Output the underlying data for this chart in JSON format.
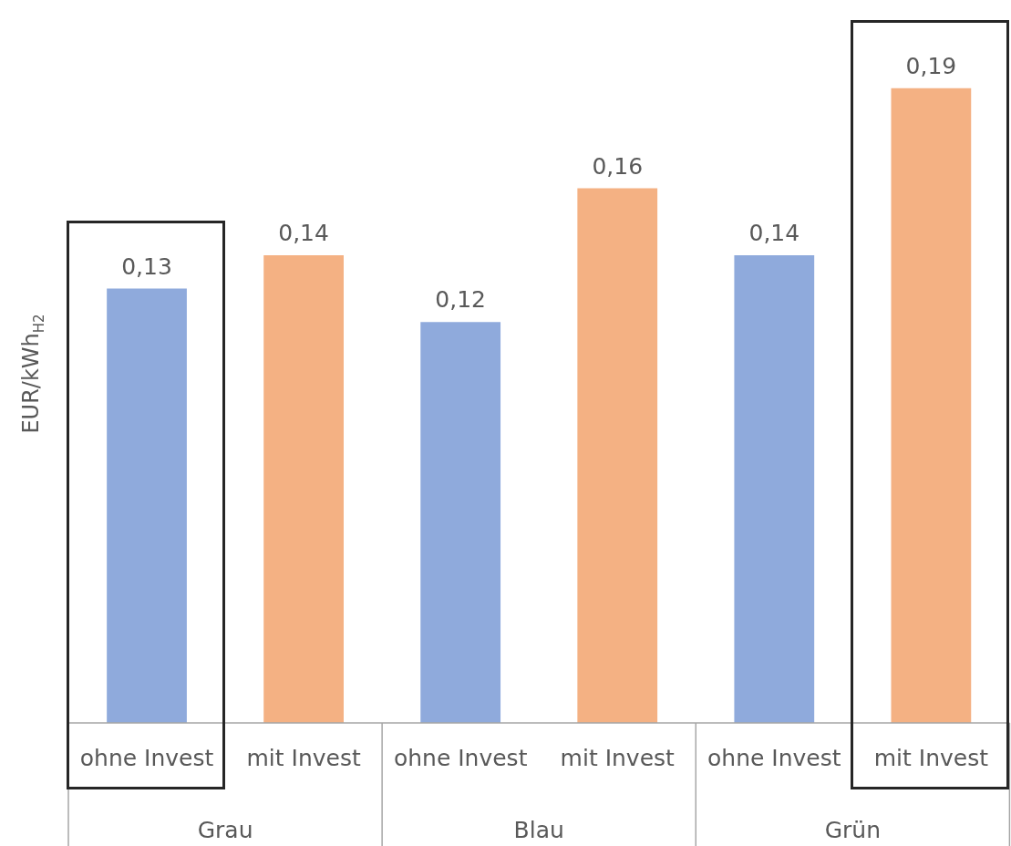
{
  "chart_data": {
    "type": "bar",
    "ylabel": "EUR/kWh$_{H2}$",
    "categories": [
      "ohne Invest",
      "mit Invest",
      "ohne Invest",
      "mit Invest",
      "ohne Invest",
      "mit Invest"
    ],
    "values": [
      0.13,
      0.14,
      0.12,
      0.16,
      0.14,
      0.19
    ],
    "colors": [
      "#8faadc",
      "#f4b183",
      "#8faadc",
      "#f4b183",
      "#8faadc",
      "#f4b183"
    ],
    "value_labels": [
      "0,13",
      "0,14",
      "0,12",
      "0,16",
      "0,14",
      "0,19"
    ],
    "annotations": [
      "Grau",
      "Blau",
      "Grün"
    ],
    "grid": false,
    "legend": false
  }
}
